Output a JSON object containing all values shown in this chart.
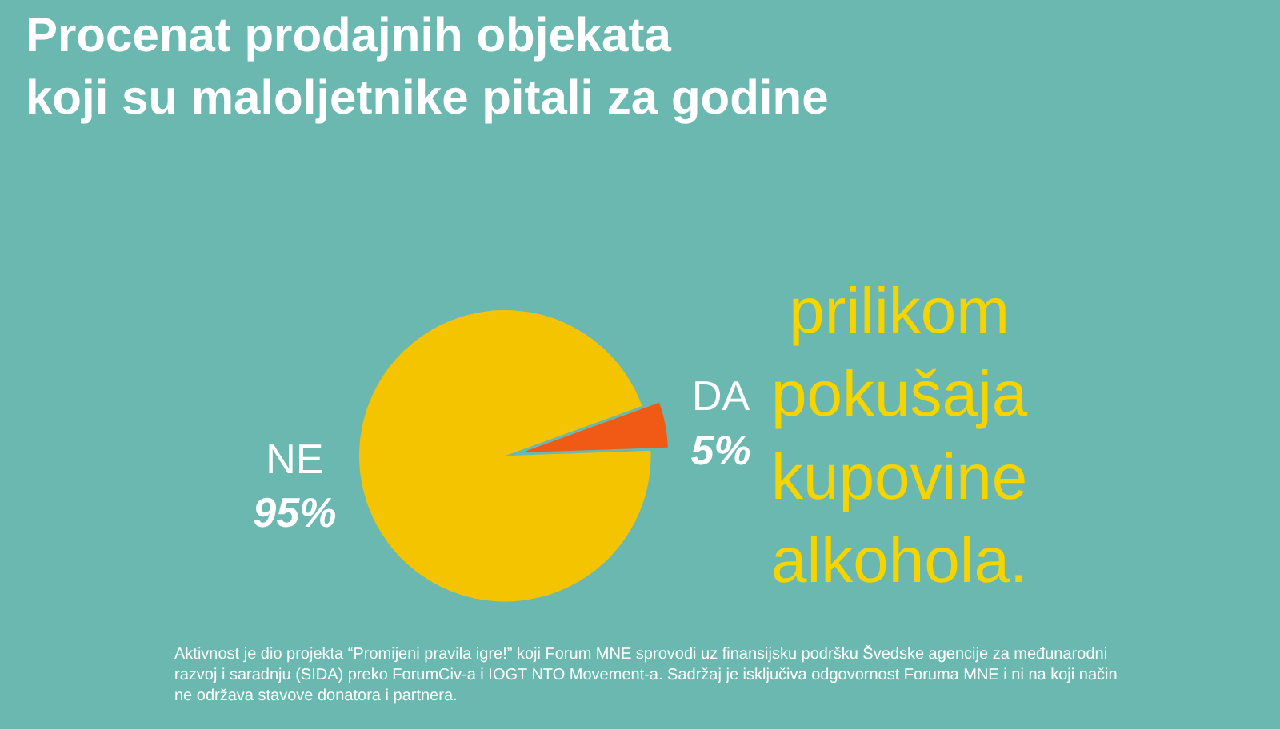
{
  "chart_data": {
    "type": "pie",
    "title": "Procenat prodajnih objekata\nkoji su maloljetnike pitali za godine",
    "categories": [
      "NE",
      "DA"
    ],
    "values": [
      95,
      5
    ],
    "colors": [
      "#f5c400",
      "#f05a14"
    ],
    "value_labels": [
      "95%",
      "5%"
    ],
    "annotations": [
      "prilikom\npokušaja\nkupovine\nalkohola.",
      "Aktivnost je dio projekta “Promijeni pravila igre!” koji Forum MNE sprovodi uz finansijsku podršku Švedske agencije za međunarodni\nrazvoj i saradnju (SIDA) preko ForumCiv-a i IOGT NTO Movement-a. Sadržaj je isključiva odgovornost Foruma MNE i ni na koji način\nne održava stavove donatora i partnera."
    ],
    "legend": false
  }
}
